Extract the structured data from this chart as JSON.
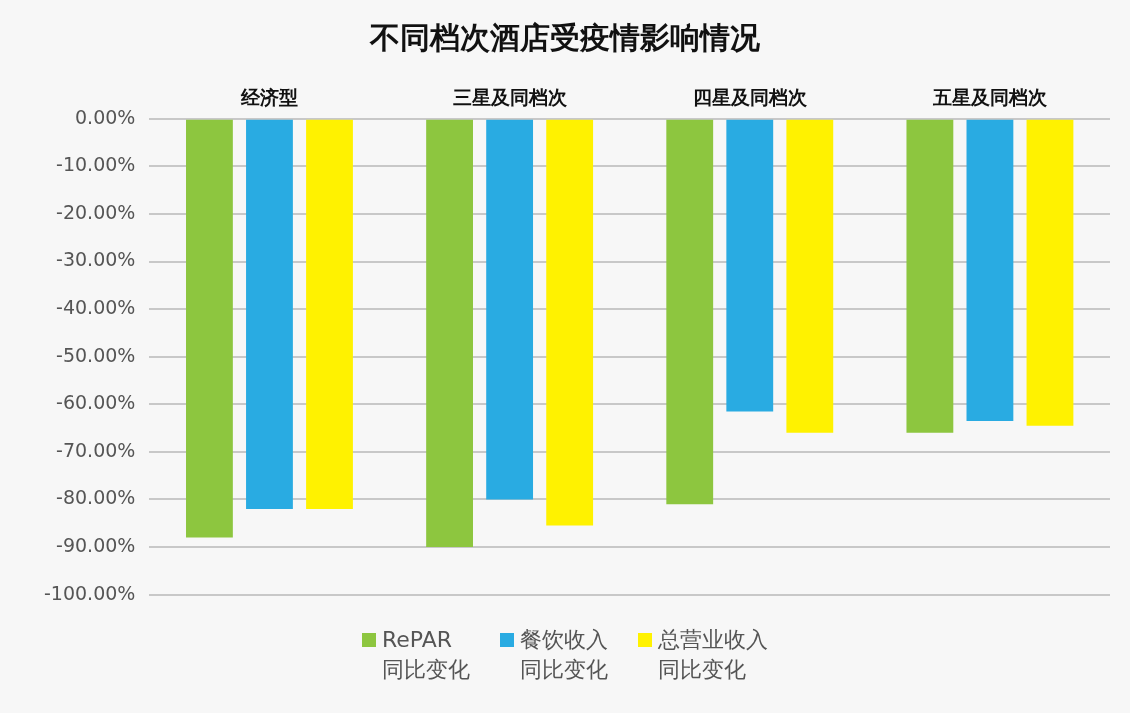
{
  "chart_data": {
    "type": "bar",
    "title": "不同档次酒店受疫情影响情况",
    "categories": [
      "经济型",
      "三星及同档次",
      "四星及同档次",
      "五星及同档次"
    ],
    "series": [
      {
        "name": "RePAR同比变化",
        "color": "#8dc63f",
        "values": [
          -88,
          -90,
          -81,
          -66
        ]
      },
      {
        "name": "餐饮收入同比变化",
        "color": "#29abe2",
        "values": [
          -82,
          -80,
          -61.5,
          -63.5
        ]
      },
      {
        "name": "总营业收入同比变化",
        "color": "#fff200",
        "values": [
          -82,
          -85.5,
          -66,
          -64.5
        ]
      }
    ],
    "ylim": [
      -100,
      0
    ],
    "yticks": [
      {
        "value": -100,
        "label": "-100.00%"
      },
      {
        "value": -90,
        "label": "-90.00%"
      },
      {
        "value": -80,
        "label": "-80.00%"
      },
      {
        "value": -70,
        "label": "-70.00%"
      },
      {
        "value": -60,
        "label": "-60.00%"
      },
      {
        "value": -50,
        "label": "-50.00%"
      },
      {
        "value": -40,
        "label": "-40.00%"
      },
      {
        "value": -30,
        "label": "-30.00%"
      },
      {
        "value": -20,
        "label": "-20.00%"
      },
      {
        "value": -10,
        "label": "-10.00%"
      },
      {
        "value": 0,
        "label": "0.00%"
      }
    ],
    "grid": "y",
    "legend": "bottom"
  }
}
